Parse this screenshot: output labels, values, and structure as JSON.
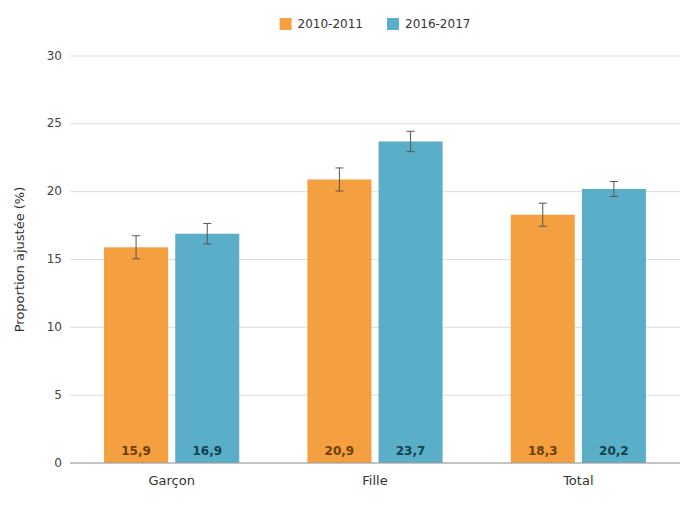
{
  "chart_data": {
    "type": "bar",
    "categories": [
      "Garçon",
      "Fille",
      "Total"
    ],
    "series": [
      {
        "name": "2010-2011",
        "color": "#F4A040",
        "values": [
          15.9,
          20.9,
          18.3
        ],
        "errors": [
          0.85,
          0.85,
          0.85
        ],
        "value_labels": [
          "15,9",
          "20,9",
          "18,3"
        ]
      },
      {
        "name": "2016-2017",
        "color": "#5BAEC7",
        "values": [
          16.9,
          23.7,
          20.2
        ],
        "errors": [
          0.75,
          0.75,
          0.55
        ],
        "value_labels": [
          "16,9",
          "23,7",
          "20,2"
        ]
      }
    ],
    "ylabel": "Proportion ajustée (%)",
    "ylim": [
      0,
      30
    ],
    "yticks": [
      0,
      5,
      10,
      15,
      20,
      25,
      30
    ],
    "grid": true,
    "legend": "top",
    "data_labels": true
  }
}
